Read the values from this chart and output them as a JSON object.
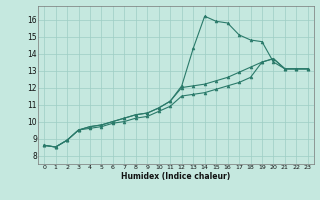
{
  "title": "",
  "xlabel": "Humidex (Indice chaleur)",
  "xlim": [
    -0.5,
    23.5
  ],
  "ylim": [
    7.5,
    16.8
  ],
  "xticks": [
    0,
    1,
    2,
    3,
    4,
    5,
    6,
    7,
    8,
    9,
    10,
    11,
    12,
    13,
    14,
    15,
    16,
    17,
    18,
    19,
    20,
    21,
    22,
    23
  ],
  "yticks": [
    8,
    9,
    10,
    11,
    12,
    13,
    14,
    15,
    16
  ],
  "line_color": "#2a7a6a",
  "bg_color": "#c5e8df",
  "grid_color": "#9ecec4",
  "line1_y": [
    8.6,
    8.5,
    8.9,
    9.5,
    9.7,
    9.8,
    10.0,
    10.2,
    10.4,
    10.5,
    10.8,
    11.2,
    12.1,
    14.3,
    16.2,
    15.9,
    15.8,
    15.1,
    14.8,
    14.7,
    13.5,
    13.1,
    13.1,
    13.1
  ],
  "line2_y": [
    8.6,
    8.5,
    8.9,
    9.5,
    9.7,
    9.8,
    10.0,
    10.2,
    10.4,
    10.5,
    10.8,
    11.2,
    12.0,
    12.1,
    12.2,
    12.4,
    12.6,
    12.9,
    13.2,
    13.5,
    13.7,
    13.1,
    13.1,
    13.1
  ],
  "line3_y": [
    8.6,
    8.5,
    8.9,
    9.5,
    9.6,
    9.7,
    9.9,
    10.0,
    10.2,
    10.3,
    10.6,
    10.9,
    11.5,
    11.6,
    11.7,
    11.9,
    12.1,
    12.3,
    12.6,
    13.5,
    13.7,
    13.1,
    13.1,
    13.1
  ]
}
